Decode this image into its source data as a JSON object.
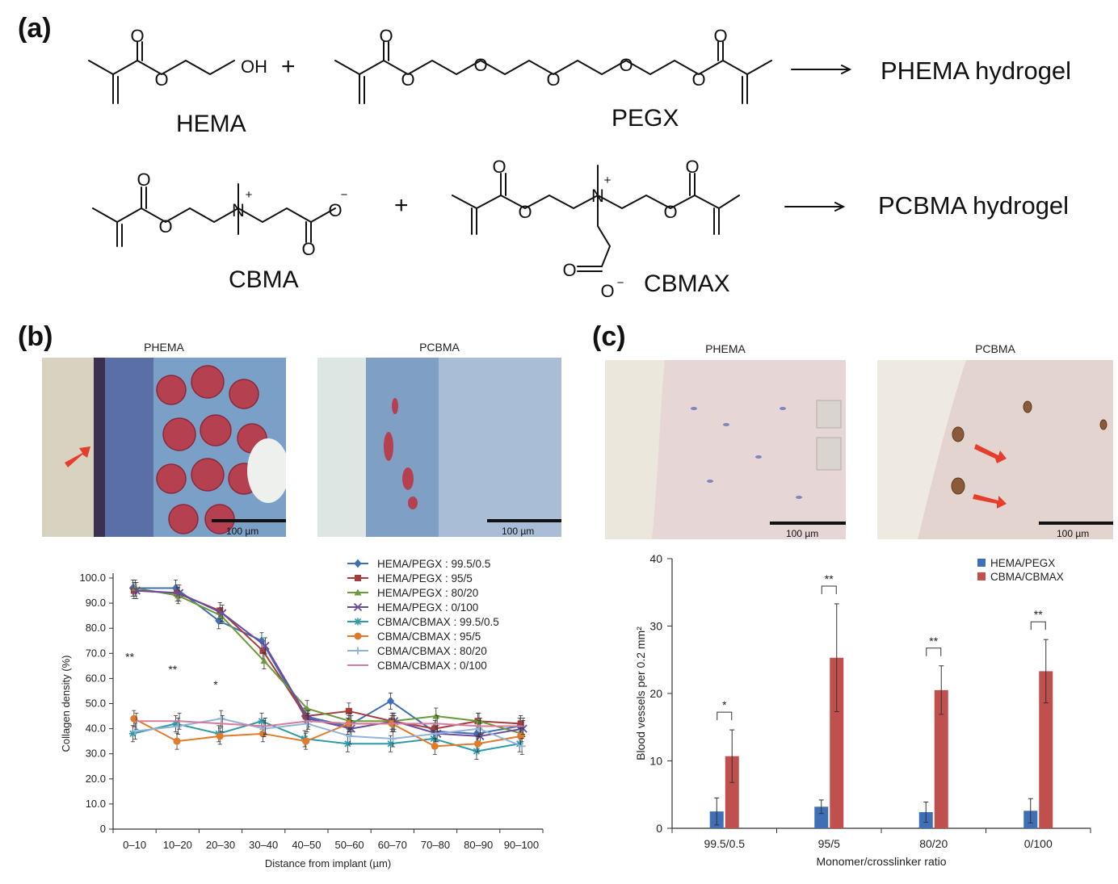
{
  "panel_a": {
    "label": "(a)",
    "row1": {
      "monomer": "HEMA",
      "crosslinker": "PEGX",
      "plus": "+",
      "product": "PHEMA hydrogel",
      "oh_label": "OH"
    },
    "row2": {
      "monomer": "CBMA",
      "crosslinker": "CBMAX",
      "plus": "+",
      "product": "PCBMA hydrogel"
    },
    "atom_o": "O",
    "atom_n": "N",
    "charge_plus": "+",
    "charge_minus": "−"
  },
  "panel_b": {
    "label": "(b)",
    "image_titles": [
      "PHEMA",
      "PCBMA"
    ],
    "scale_bar_label": "100 µm",
    "chart_data": {
      "type": "line",
      "xlabel": "Distance from implant (µm)",
      "ylabel": "Collagen density (%)",
      "ylim": [
        0,
        100
      ],
      "yticks": [
        "0",
        "10.0",
        "20.0",
        "30.0",
        "40.0",
        "50.0",
        "60.0",
        "70.0",
        "80.0",
        "90.0",
        "100.0"
      ],
      "categories": [
        "0–10",
        "10–20",
        "20–30",
        "30–40",
        "40–50",
        "50–60",
        "60–70",
        "70–80",
        "80–90",
        "90–100"
      ],
      "significance": [
        {
          "category": "0–10",
          "mark": "**"
        },
        {
          "category": "10–20",
          "mark": "**"
        },
        {
          "category": "20–30",
          "mark": "*"
        }
      ],
      "series": [
        {
          "name": "HEMA/PEGX : 99.5/0.5",
          "color": "#3f6fb5",
          "marker": "diamond",
          "values": [
            96,
            96,
            83,
            75,
            45,
            41,
            51,
            39,
            38,
            41
          ]
        },
        {
          "name": "HEMA/PEGX : 95/5",
          "color": "#a83c3c",
          "marker": "square",
          "values": [
            95,
            94,
            87,
            71,
            45,
            47,
            43,
            40,
            43,
            42
          ]
        },
        {
          "name": "HEMA/PEGX : 80/20",
          "color": "#6a9a3a",
          "marker": "triangle",
          "values": [
            96,
            93,
            85,
            67,
            48,
            43,
            43,
            45,
            43,
            38
          ]
        },
        {
          "name": "HEMA/PEGX : 0/100",
          "color": "#6a4c9c",
          "marker": "x",
          "values": [
            95,
            94,
            86,
            73,
            44,
            40,
            43,
            38,
            37,
            40
          ]
        },
        {
          "name": "CBMA/CBMAX : 99.5/0.5",
          "color": "#2e9aa9",
          "marker": "star",
          "values": [
            38,
            42,
            38,
            43,
            36,
            34,
            34,
            36,
            31,
            34
          ]
        },
        {
          "name": "CBMA/CBMAX : 95/5",
          "color": "#e07b2c",
          "marker": "circle",
          "values": [
            44,
            35,
            37,
            38,
            35,
            42,
            42,
            33,
            34,
            37
          ]
        },
        {
          "name": "CBMA/CBMAX : 80/20",
          "color": "#8fb3d9",
          "marker": "plus",
          "values": [
            39,
            41,
            44,
            40,
            42,
            37,
            36,
            38,
            40,
            33
          ]
        },
        {
          "name": "CBMA/CBMAX : 0/100",
          "color": "#d77b9a",
          "marker": "none",
          "values": [
            43,
            43,
            42,
            41,
            43,
            42,
            42,
            42,
            41,
            41
          ]
        }
      ]
    }
  },
  "panel_c": {
    "label": "(c)",
    "image_titles": [
      "PHEMA",
      "PCBMA"
    ],
    "scale_bar_label": "100 µm",
    "chart_data": {
      "type": "bar",
      "xlabel": "Monomer/crosslinker ratio",
      "ylabel": "Blood vessels per 0.2 mm²",
      "ylim": [
        0,
        40
      ],
      "yticks": [
        "0",
        "10",
        "20",
        "30",
        "40"
      ],
      "categories": [
        "99.5/0.5",
        "95/5",
        "80/20",
        "0/100"
      ],
      "series": [
        {
          "name": "HEMA/PEGX",
          "color": "#3f6fb5",
          "values": [
            2.5,
            3.2,
            2.4,
            2.6
          ],
          "errors": [
            2.0,
            1.0,
            1.5,
            1.8
          ]
        },
        {
          "name": "CBMA/CBMAX",
          "color": "#c0504d",
          "values": [
            10.7,
            25.3,
            20.5,
            23.3
          ],
          "errors": [
            3.9,
            8.0,
            3.6,
            4.7
          ]
        }
      ],
      "significance": [
        "*",
        "**",
        "**",
        "**"
      ]
    }
  }
}
